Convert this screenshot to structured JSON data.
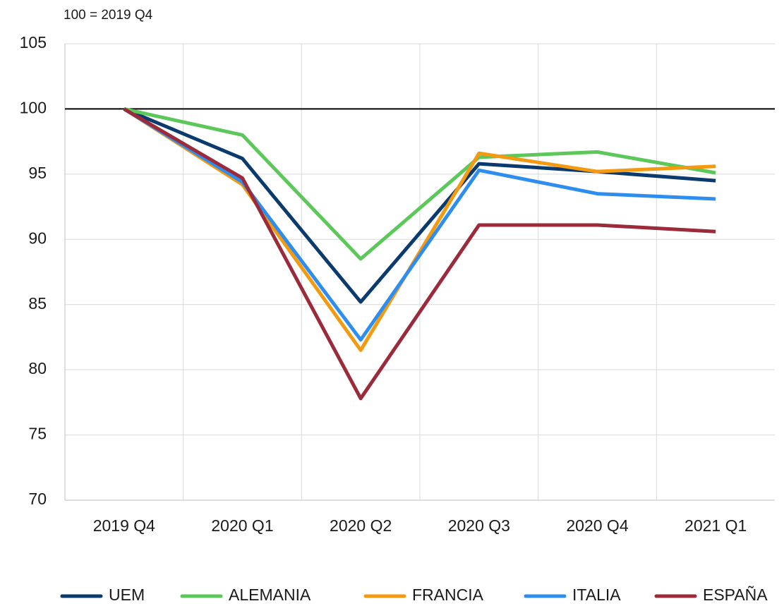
{
  "chart_data": {
    "type": "line",
    "subtitle": "100 = 2019 Q4",
    "categories": [
      "2019 Q4",
      "2020 Q1",
      "2020 Q2",
      "2020 Q3",
      "2020 Q4",
      "2021 Q1"
    ],
    "series": [
      {
        "name": "UEM",
        "color": "#0b3a6e",
        "values": [
          100,
          96.2,
          85.2,
          95.8,
          95.2,
          94.5
        ]
      },
      {
        "name": "ALEMANIA",
        "color": "#5cc85a",
        "values": [
          100,
          98.0,
          88.5,
          96.3,
          96.7,
          95.1
        ]
      },
      {
        "name": "FRANCIA",
        "color": "#f39a10",
        "values": [
          100,
          94.2,
          81.5,
          96.6,
          95.2,
          95.6
        ]
      },
      {
        "name": "ITALIA",
        "color": "#2e8ef0",
        "values": [
          100,
          94.4,
          82.3,
          95.3,
          93.5,
          93.1
        ]
      },
      {
        "name": "ESPAÑA",
        "color": "#9b2a3a",
        "values": [
          100,
          94.7,
          77.8,
          91.1,
          91.1,
          90.6
        ]
      }
    ],
    "ylim": [
      70,
      105
    ],
    "yticks": [
      70,
      75,
      80,
      85,
      90,
      95,
      100,
      105
    ],
    "reference_line": 100,
    "grid": true,
    "legend": "bottom"
  }
}
